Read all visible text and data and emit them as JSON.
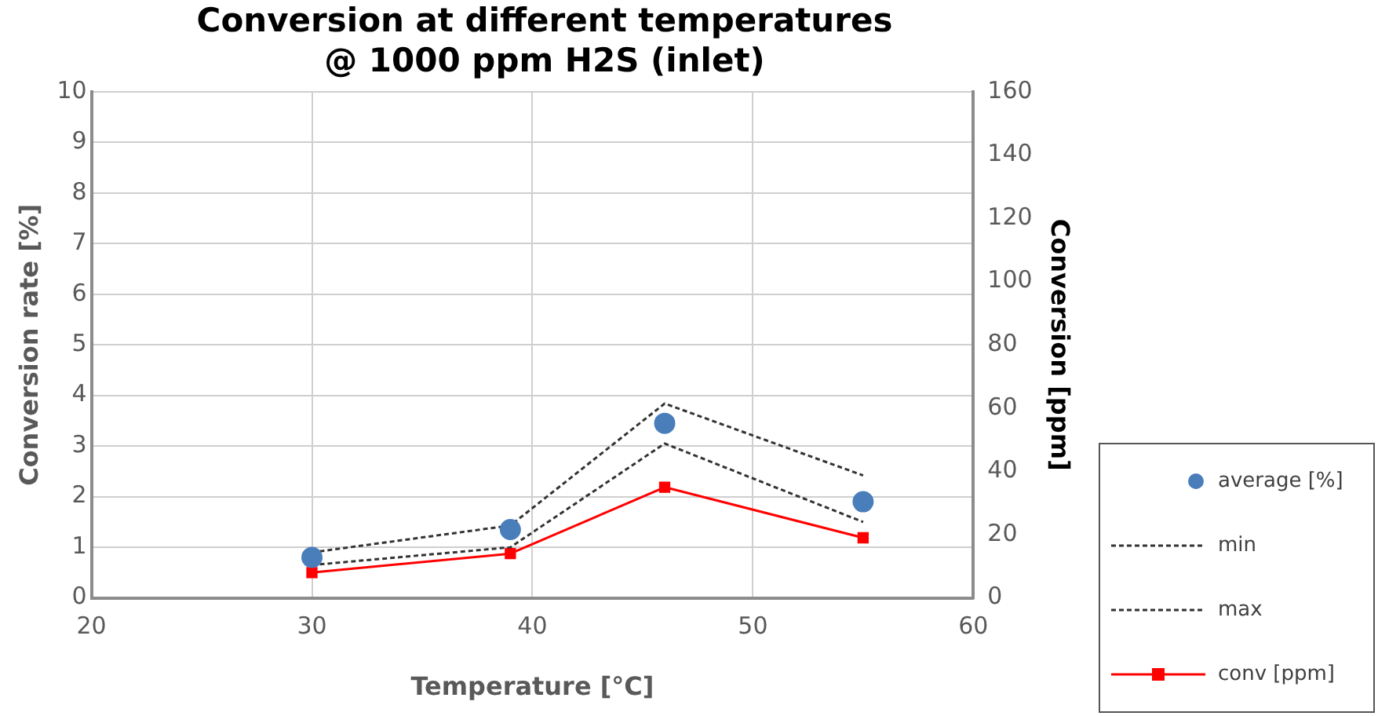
{
  "chart_data": {
    "type": "line",
    "title": [
      "Conversion at different temperatures",
      "@ 1000 ppm H2S (inlet)"
    ],
    "xlabel": "Temperature [°C]",
    "ylabel": "Conversion rate [%]",
    "y2label": "Conversion [ppm]",
    "x": [
      30,
      39,
      46,
      55
    ],
    "series": [
      {
        "name": "average [%]",
        "type": "scatter",
        "color": "#4a7ebb",
        "marker": "circle",
        "values": [
          0.8,
          1.35,
          3.45,
          1.9
        ]
      },
      {
        "name": "min",
        "color": "#333333",
        "marker": "none",
        "line_style": "dashed",
        "values": [
          0.65,
          1.0,
          3.05,
          1.5
        ]
      },
      {
        "name": "max",
        "color": "#333333",
        "marker": "none",
        "line_style": "dashed",
        "values": [
          0.9,
          1.43,
          3.84,
          2.42
        ]
      },
      {
        "name": "conv [ppm]",
        "color": "#ff0000",
        "marker": "square",
        "line_style": "solid",
        "axis": "y2",
        "values": [
          8,
          14,
          35,
          19
        ]
      }
    ],
    "xlim": [
      20,
      60
    ],
    "xticks": [
      20,
      30,
      40,
      50,
      60
    ],
    "ylim": [
      0,
      10
    ],
    "yticks": [
      0,
      1,
      2,
      3,
      4,
      5,
      6,
      7,
      8,
      9,
      10
    ],
    "y2lim": [
      0,
      160
    ],
    "y2ticks": [
      0,
      20,
      40,
      60,
      80,
      100,
      120,
      140,
      160
    ],
    "grid": true,
    "legend": "bottom right"
  }
}
